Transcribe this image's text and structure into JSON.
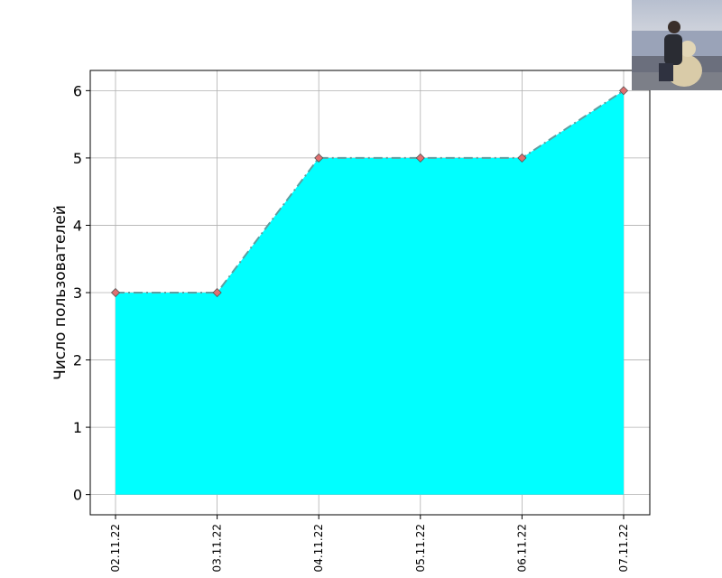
{
  "chart_data": {
    "type": "area",
    "categories": [
      "02.11.22",
      "03.11.22",
      "04.11.22",
      "05.11.22",
      "06.11.22",
      "07.11.22"
    ],
    "series": [
      {
        "values": [
          3,
          3,
          5,
          5,
          5,
          6
        ]
      }
    ],
    "title": "",
    "xlabel": "",
    "ylabel": "Число пользователей",
    "ylim": [
      -0.3,
      6.3
    ],
    "yticks": [
      0,
      1,
      2,
      3,
      4,
      5,
      6
    ],
    "grid": true,
    "fill_color": "#00ffff",
    "line_color": "#5f9ea0",
    "line_style": "dash-dot",
    "marker": "diamond",
    "marker_color": "#e07070"
  }
}
